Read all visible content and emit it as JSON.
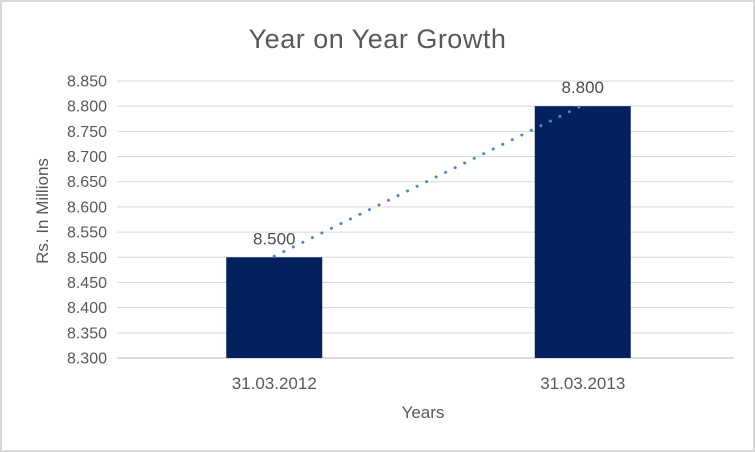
{
  "window": {
    "background": "#ffffff",
    "border_color": "#d9d9d9"
  },
  "chart_data": {
    "type": "bar",
    "title": "Year on Year Growth",
    "xlabel": "Years",
    "ylabel": "Rs. In Millions",
    "categories": [
      "31.03.2012",
      "31.03.2013"
    ],
    "values": [
      8.5,
      8.8
    ],
    "data_labels": [
      "8.500",
      "8.800"
    ],
    "ylim": [
      8.3,
      8.85
    ],
    "ytick_step": 0.05,
    "ytick_labels": [
      "8.300",
      "8.350",
      "8.400",
      "8.450",
      "8.500",
      "8.550",
      "8.600",
      "8.650",
      "8.700",
      "8.750",
      "8.800",
      "8.850"
    ],
    "grid": true,
    "legend": false,
    "trendline": {
      "style": "dotted",
      "from_category": "31.03.2012",
      "from_value": 8.5,
      "to_category": "31.03.2013",
      "to_value": 8.8
    },
    "colors": {
      "bar": "#02215e",
      "trendline": "#4e86c8",
      "gridline": "#d9d9d9",
      "axis_line": "#c6c6c6",
      "tick_text": "#595959",
      "data_label_text": "#4d4d4d",
      "title_text": "#595959"
    }
  }
}
